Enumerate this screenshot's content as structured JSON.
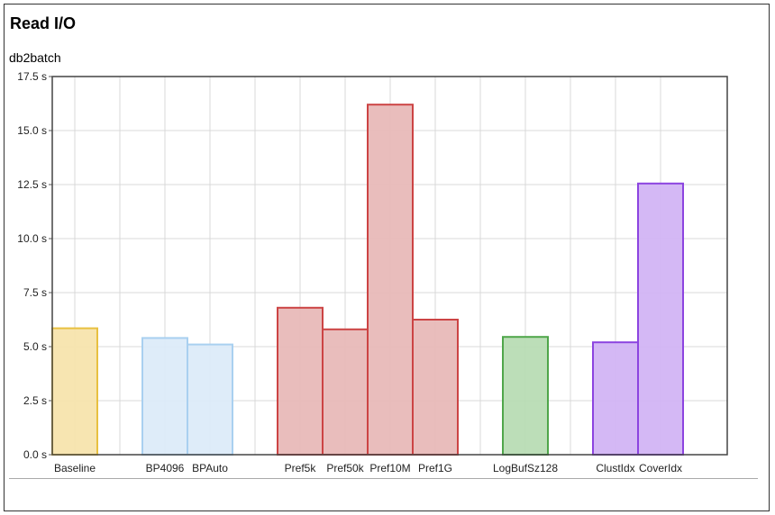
{
  "chart_data": {
    "type": "bar",
    "title": "Read I/O",
    "subtitle": "db2batch",
    "ylabel": "",
    "xlabel": "",
    "ylim": [
      0,
      17.5
    ],
    "y_ticks": [
      "0.0 s",
      "2.5 s",
      "5.0 s",
      "7.5 s",
      "10.0 s",
      "12.5 s",
      "15.0 s",
      "17.5 s"
    ],
    "y_tick_values": [
      0,
      2.5,
      5.0,
      7.5,
      10.0,
      12.5,
      15.0,
      17.5
    ],
    "grid": true,
    "categories": [
      "Baseline",
      "",
      "BP4096",
      "BPAuto",
      "",
      "Pref5k",
      "Pref50k",
      "Pref10M",
      "Pref1G",
      "",
      "LogBufSz128",
      "",
      "ClustIdx",
      "CoverIdx"
    ],
    "values": [
      5.85,
      null,
      5.4,
      5.1,
      null,
      6.8,
      5.8,
      16.2,
      6.25,
      null,
      5.45,
      null,
      5.2,
      12.55
    ],
    "bar_colors": [
      {
        "fill": "#f7e4ad",
        "stroke": "#e8c040"
      },
      null,
      {
        "fill": "#dcebf9",
        "stroke": "#a9d0f0"
      },
      {
        "fill": "#dcebf9",
        "stroke": "#a9d0f0"
      },
      null,
      {
        "fill": "#e8b9b8",
        "stroke": "#cc4444"
      },
      {
        "fill": "#e8b9b8",
        "stroke": "#cc4444"
      },
      {
        "fill": "#e8b9b8",
        "stroke": "#cc4444"
      },
      {
        "fill": "#e8b9b8",
        "stroke": "#cc4444"
      },
      null,
      {
        "fill": "#b8dcb4",
        "stroke": "#4fa64a"
      },
      null,
      {
        "fill": "#d2b4f4",
        "stroke": "#8c44e0"
      },
      {
        "fill": "#d2b4f4",
        "stroke": "#8c44e0"
      }
    ]
  }
}
